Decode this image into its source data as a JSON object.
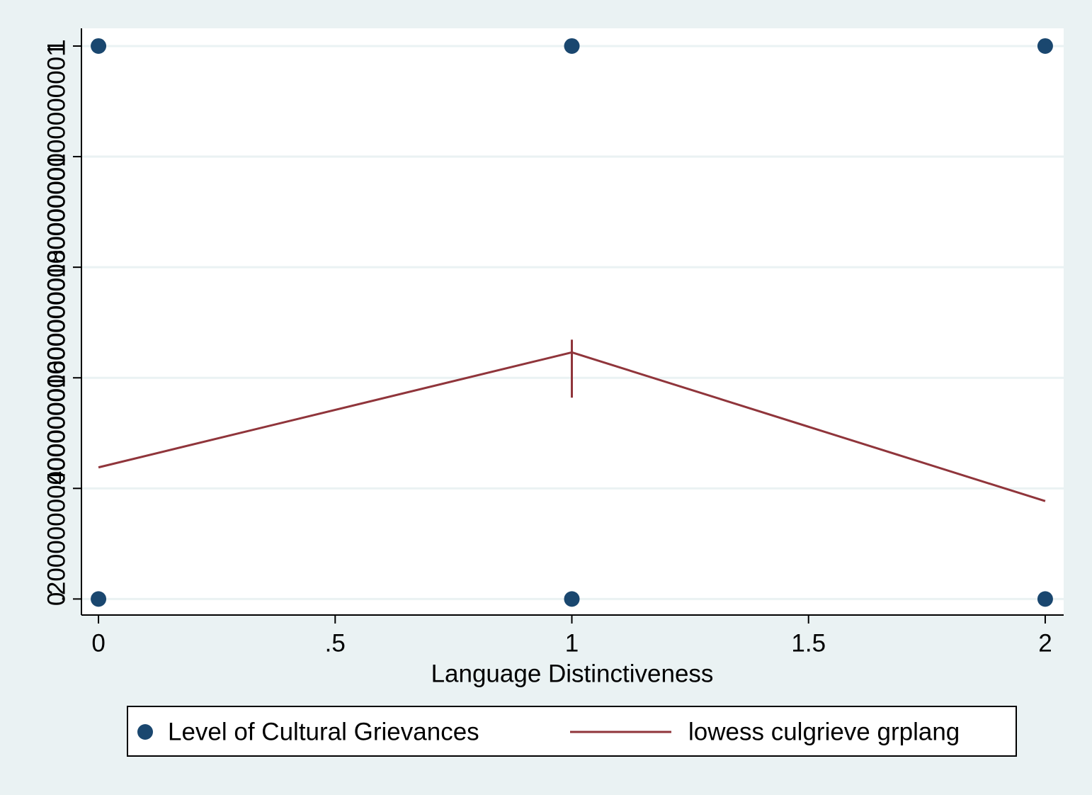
{
  "chart_data": {
    "type": "scatter",
    "xlabel": "Language Distinctiveness",
    "xlim": [
      -0.036,
      2.039
    ],
    "xticks": [
      0,
      {
        "value": 0.5,
        "label": ".5"
      },
      1,
      1.5,
      2
    ],
    "ylim": [
      -0.029,
      1.032
    ],
    "yticks": [
      0,
      {
        "value": 0.2,
        "label": ".2000000000000001"
      },
      {
        "value": 0.4,
        "label": ".4000000000000001"
      },
      {
        "value": 0.6,
        "label": ".6000000000000001"
      },
      {
        "value": 0.8,
        "label": ".8000000000000001"
      },
      1
    ],
    "grid": true,
    "series": [
      {
        "name": "Level of Cultural Grievances",
        "color": "#1a476f",
        "kind": "points",
        "x": [
          0,
          0,
          1,
          1,
          2,
          2
        ],
        "values": [
          0,
          1,
          0,
          1,
          0,
          1
        ]
      },
      {
        "name": "lowess culgrieve grplang",
        "color": "#90353b",
        "kind": "line",
        "x": [
          0,
          1,
          1,
          1,
          1,
          2
        ],
        "values": [
          0.238,
          0.446,
          0.469,
          0.364,
          0.446,
          0.177
        ]
      }
    ]
  }
}
